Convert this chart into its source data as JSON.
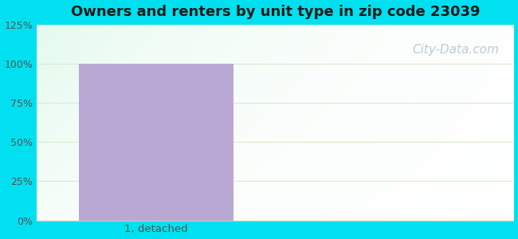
{
  "title": "Owners and renters by unit type in zip code 23039",
  "categories": [
    "1, detached"
  ],
  "values": [
    100
  ],
  "bar_color": "#b9a8d4",
  "bar_width": 0.65,
  "ylim": [
    0,
    125
  ],
  "yticks": [
    0,
    25,
    50,
    75,
    100,
    125
  ],
  "ytick_labels": [
    "0%",
    "25%",
    "50%",
    "75%",
    "100%",
    "125%"
  ],
  "title_fontsize": 13,
  "tick_fontsize": 9,
  "xlabel_fontsize": 9.5,
  "background_outer": "#00e0f0",
  "watermark": "City-Data.com",
  "watermark_color": "#b8cdd4",
  "watermark_fontsize": 11,
  "grid_color": "#d8ead0",
  "grid_linewidth": 0.8
}
